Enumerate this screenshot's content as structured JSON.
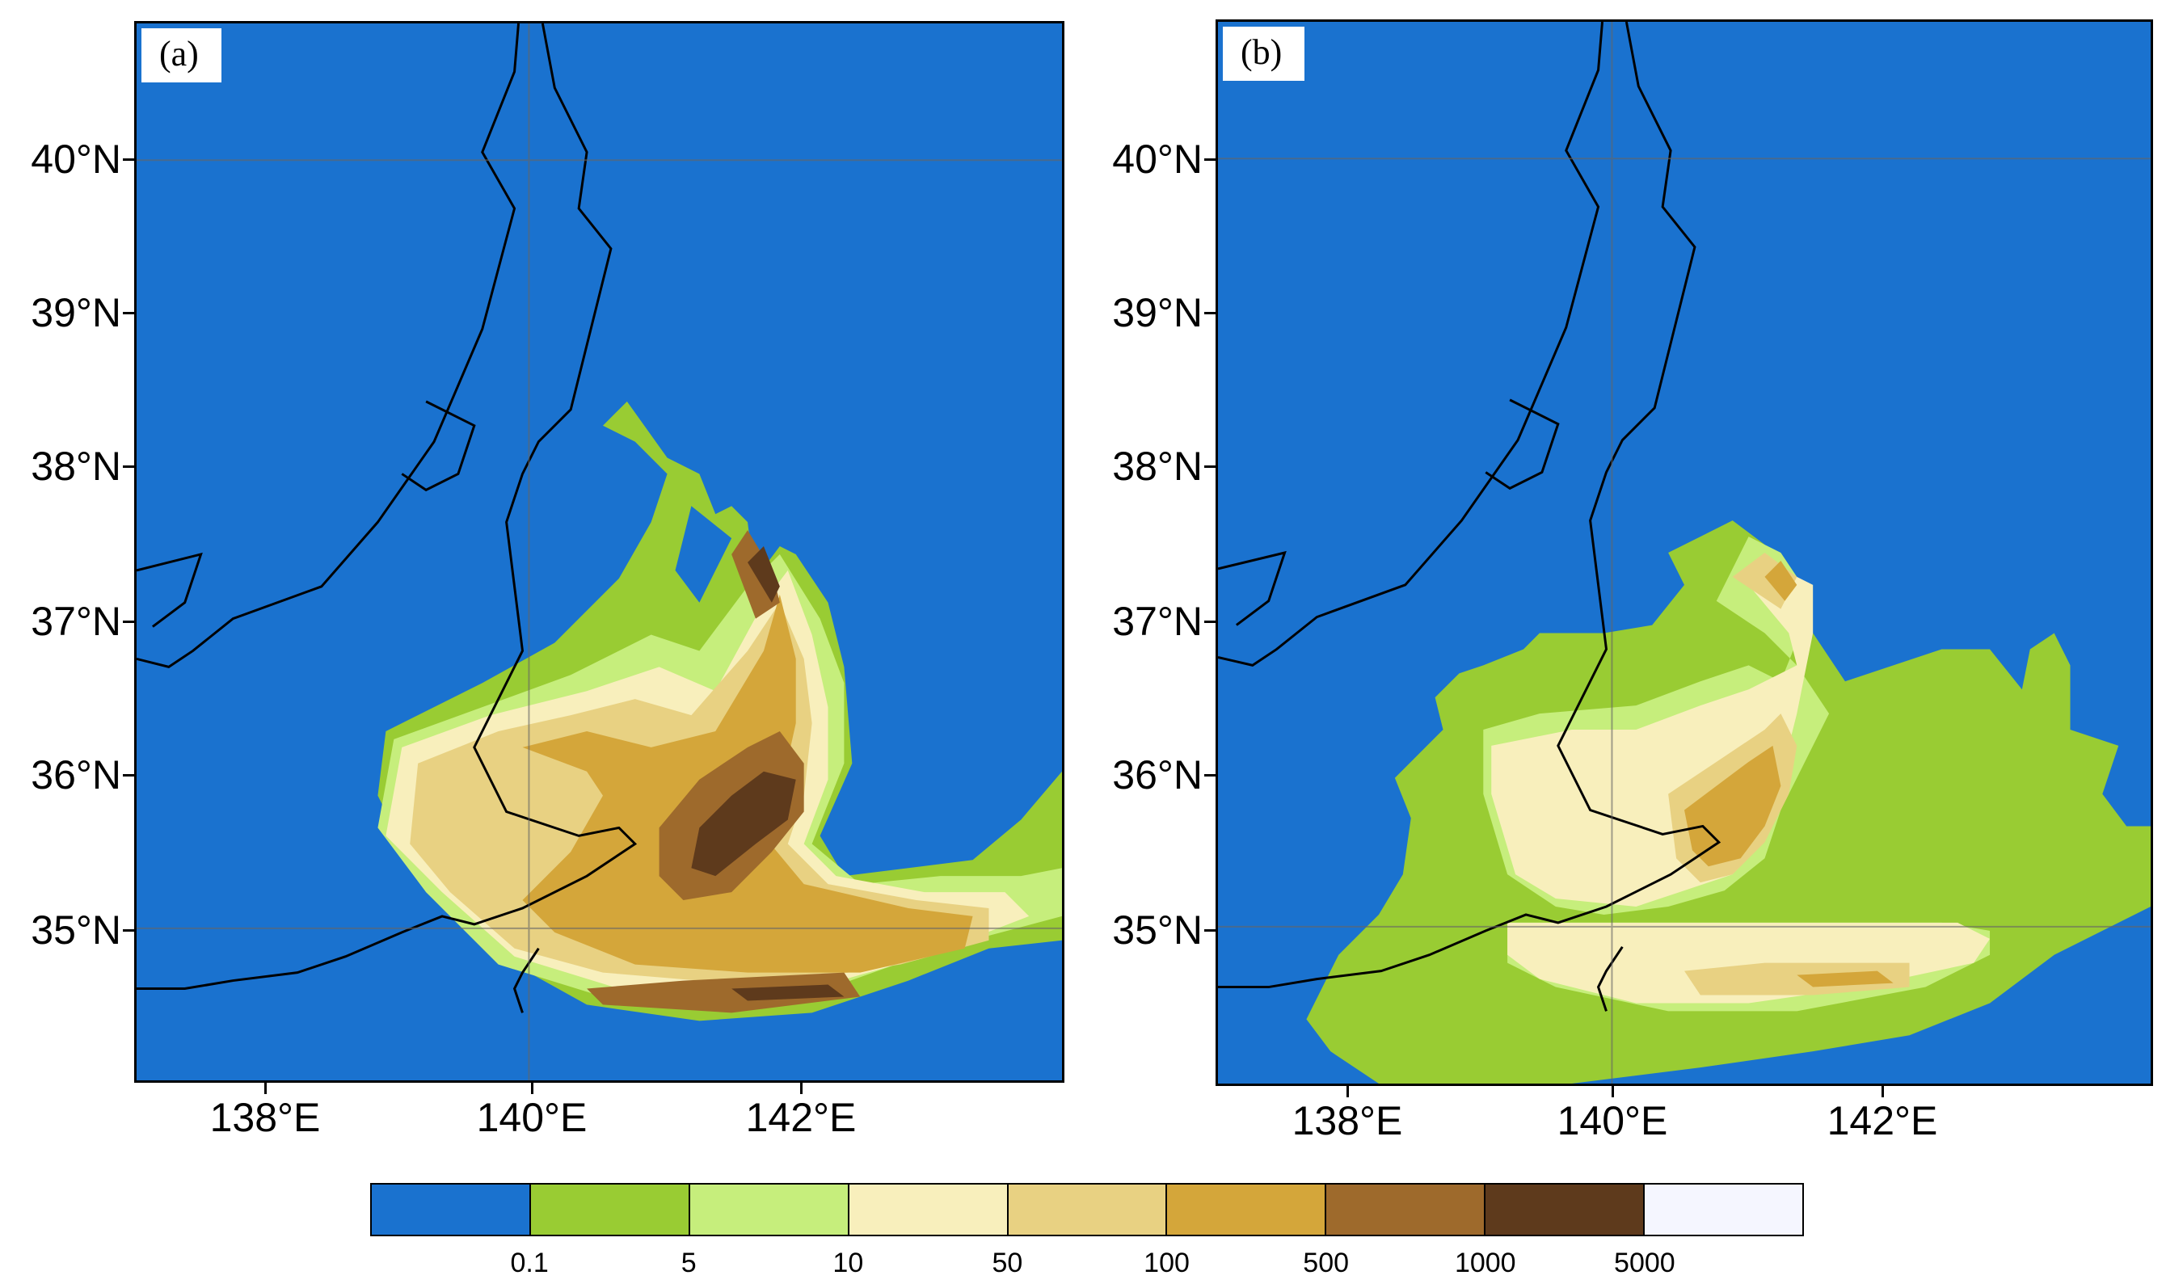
{
  "panels": [
    {
      "id": "a",
      "label": "(a)"
    },
    {
      "id": "b",
      "label": "(b)"
    }
  ],
  "axes": {
    "lat_labels": [
      "40°N",
      "39°N",
      "38°N",
      "37°N",
      "36°N",
      "35°N"
    ],
    "lon_labels": [
      "138°E",
      "140°E",
      "142°E"
    ]
  },
  "colorbar": {
    "colors": [
      "#1a72cf",
      "#99cc33",
      "#c6ee7c",
      "#f8efbc",
      "#e8d182",
      "#d4a63a",
      "#9e6a2c",
      "#5e3a1c",
      "#f5f6ff"
    ],
    "ticks": [
      "0.1",
      "5",
      "10",
      "50",
      "100",
      "500",
      "1000",
      "5000"
    ]
  }
}
